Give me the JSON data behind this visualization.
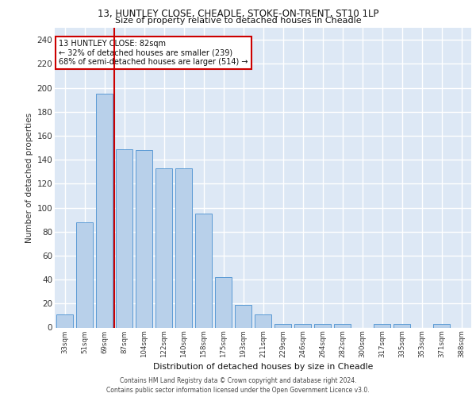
{
  "title1": "13, HUNTLEY CLOSE, CHEADLE, STOKE-ON-TRENT, ST10 1LP",
  "title2": "Size of property relative to detached houses in Cheadle",
  "xlabel": "Distribution of detached houses by size in Cheadle",
  "ylabel": "Number of detached properties",
  "bar_labels": [
    "33sqm",
    "51sqm",
    "69sqm",
    "87sqm",
    "104sqm",
    "122sqm",
    "140sqm",
    "158sqm",
    "175sqm",
    "193sqm",
    "211sqm",
    "229sqm",
    "246sqm",
    "264sqm",
    "282sqm",
    "300sqm",
    "317sqm",
    "335sqm",
    "353sqm",
    "371sqm",
    "388sqm"
  ],
  "bar_values": [
    11,
    88,
    195,
    149,
    148,
    133,
    133,
    95,
    42,
    19,
    11,
    3,
    3,
    3,
    3,
    0,
    3,
    3,
    0,
    3,
    0
  ],
  "bar_color": "#b8d0ea",
  "bar_edge_color": "#5b9bd5",
  "background_color": "#dde8f5",
  "grid_color": "#ffffff",
  "ylim": [
    0,
    250
  ],
  "yticks": [
    0,
    20,
    40,
    60,
    80,
    100,
    120,
    140,
    160,
    180,
    200,
    220,
    240
  ],
  "red_line_x": 2.5,
  "annotation_title": "13 HUNTLEY CLOSE: 82sqm",
  "annotation_line1": "← 32% of detached houses are smaller (239)",
  "annotation_line2": "68% of semi-detached houses are larger (514) →",
  "red_line_color": "#cc0000",
  "annotation_box_color": "#ffffff",
  "annotation_box_edge": "#cc0000",
  "footer1": "Contains HM Land Registry data © Crown copyright and database right 2024.",
  "footer2": "Contains public sector information licensed under the Open Government Licence v3.0."
}
